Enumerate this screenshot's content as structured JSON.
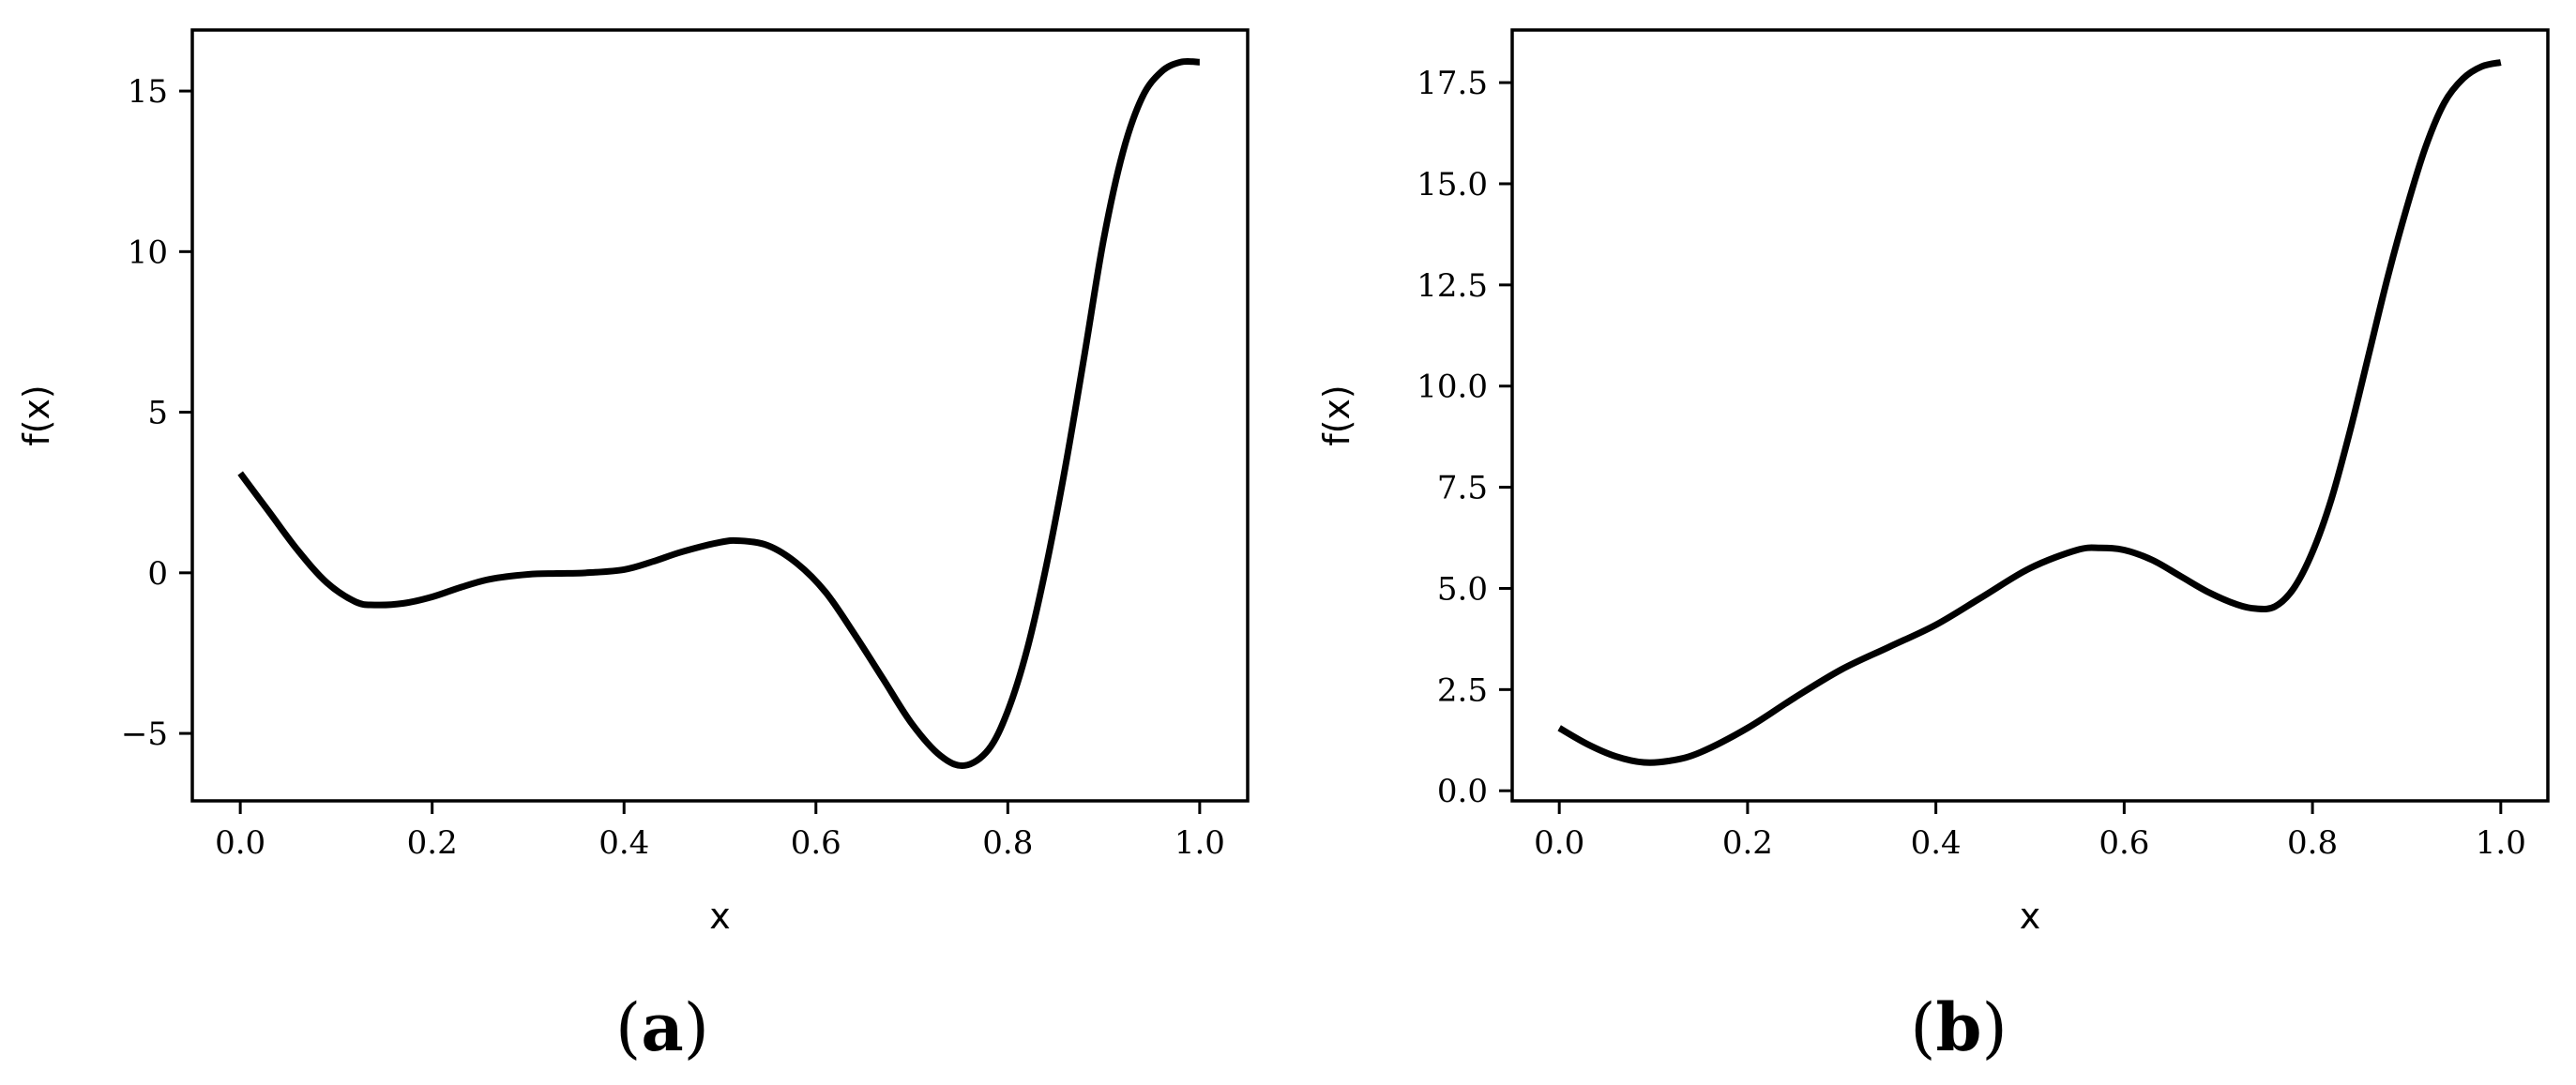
{
  "chart_data": [
    {
      "type": "line",
      "panel_label": "(a)",
      "caption_parts": [
        "(",
        "a",
        ")"
      ],
      "xlabel": "x",
      "ylabel": "f(x)",
      "xlim": [
        -0.05,
        1.05
      ],
      "ylim": [
        -7.1,
        16.9
      ],
      "xticks": [
        0.0,
        0.2,
        0.4,
        0.6,
        0.8,
        1.0
      ],
      "xtick_labels": [
        "0.0",
        "0.2",
        "0.4",
        "0.6",
        "0.8",
        "1.0"
      ],
      "yticks": [
        -5,
        0,
        5,
        10,
        15
      ],
      "ytick_labels": [
        "−5",
        "0",
        "5",
        "10",
        "15"
      ],
      "grid": false,
      "series": [
        {
          "color": "#000000",
          "x": [
            0.0,
            0.03,
            0.06,
            0.09,
            0.12,
            0.14,
            0.17,
            0.2,
            0.23,
            0.26,
            0.3,
            0.33,
            0.36,
            0.4,
            0.43,
            0.46,
            0.5,
            0.52,
            0.55,
            0.58,
            0.61,
            0.64,
            0.67,
            0.7,
            0.73,
            0.755,
            0.78,
            0.8,
            0.82,
            0.84,
            0.86,
            0.88,
            0.9,
            0.92,
            0.94,
            0.96,
            0.98,
            1.0
          ],
          "y": [
            3.1,
            1.9,
            0.7,
            -0.3,
            -0.9,
            -1.0,
            -0.95,
            -0.75,
            -0.45,
            -0.2,
            -0.05,
            -0.02,
            0.0,
            0.1,
            0.35,
            0.65,
            0.95,
            1.0,
            0.85,
            0.3,
            -0.6,
            -1.9,
            -3.3,
            -4.7,
            -5.7,
            -6.0,
            -5.5,
            -4.3,
            -2.4,
            0.2,
            3.3,
            6.8,
            10.4,
            13.1,
            14.8,
            15.6,
            15.9,
            15.9
          ]
        }
      ]
    },
    {
      "type": "line",
      "panel_label": "(b)",
      "caption_parts": [
        "(",
        "b",
        ")"
      ],
      "xlabel": "x",
      "ylabel": "f(x)",
      "xlim": [
        -0.05,
        1.05
      ],
      "ylim": [
        -0.25,
        18.8
      ],
      "xticks": [
        0.0,
        0.2,
        0.4,
        0.6,
        0.8,
        1.0
      ],
      "xtick_labels": [
        "0.0",
        "0.2",
        "0.4",
        "0.6",
        "0.8",
        "1.0"
      ],
      "yticks": [
        0.0,
        2.5,
        5.0,
        7.5,
        10.0,
        12.5,
        15.0,
        17.5
      ],
      "ytick_labels": [
        "0.0",
        "2.5",
        "5.0",
        "7.5",
        "10.0",
        "12.5",
        "15.0",
        "17.5"
      ],
      "grid": false,
      "series": [
        {
          "color": "#000000",
          "x": [
            0.0,
            0.03,
            0.06,
            0.09,
            0.12,
            0.15,
            0.2,
            0.25,
            0.3,
            0.35,
            0.4,
            0.45,
            0.5,
            0.55,
            0.575,
            0.6,
            0.63,
            0.66,
            0.69,
            0.72,
            0.74,
            0.76,
            0.78,
            0.8,
            0.82,
            0.84,
            0.86,
            0.88,
            0.9,
            0.92,
            0.94,
            0.96,
            0.98,
            1.0
          ],
          "y": [
            1.55,
            1.15,
            0.85,
            0.7,
            0.75,
            0.95,
            1.55,
            2.3,
            3.0,
            3.55,
            4.1,
            4.8,
            5.5,
            5.95,
            6.0,
            5.95,
            5.7,
            5.3,
            4.9,
            4.6,
            4.5,
            4.55,
            5.0,
            5.9,
            7.2,
            8.9,
            10.8,
            12.7,
            14.4,
            15.9,
            17.0,
            17.6,
            17.9,
            18.0
          ]
        }
      ]
    }
  ]
}
